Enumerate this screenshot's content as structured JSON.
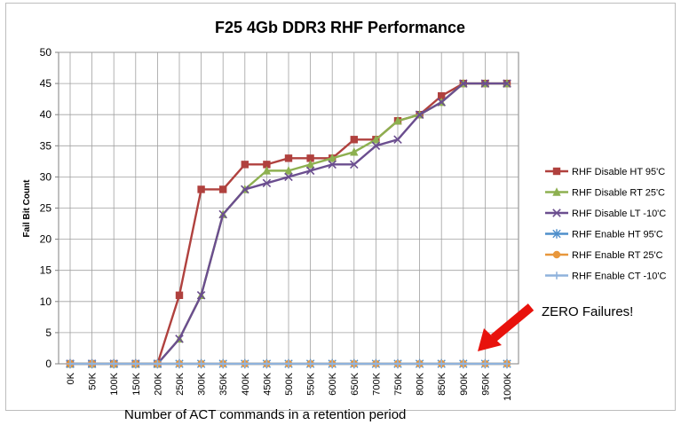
{
  "chart_data": {
    "type": "line",
    "title": "F25 4Gb DDR3 RHF Performance",
    "xlabel": "Number of ACT commands in a retention period",
    "ylabel": "Fail Bit Count",
    "ylim": [
      0,
      50
    ],
    "yticks": [
      0,
      5,
      10,
      15,
      20,
      25,
      30,
      35,
      40,
      45,
      50
    ],
    "grid": true,
    "legend_position": "right",
    "categories": [
      "0K",
      "50K",
      "100K",
      "150K",
      "200K",
      "250K",
      "300K",
      "350K",
      "400K",
      "450K",
      "500K",
      "550K",
      "600K",
      "650K",
      "700K",
      "750K",
      "800K",
      "850K",
      "900K",
      "950K",
      "1000K"
    ],
    "series": [
      {
        "name": "RHF Disable HT 95'C",
        "color": "#b0413e",
        "marker": "square",
        "values": [
          0,
          0,
          0,
          0,
          0,
          11,
          28,
          28,
          32,
          32,
          33,
          33,
          33,
          36,
          36,
          39,
          40,
          43,
          45,
          45,
          45
        ]
      },
      {
        "name": "RHF Disable RT 25'C",
        "color": "#8db050",
        "marker": "triangle",
        "values": [
          0,
          0,
          0,
          0,
          0,
          4,
          11,
          24,
          28,
          31,
          31,
          32,
          33,
          34,
          36,
          39,
          40,
          42,
          45,
          45,
          45
        ]
      },
      {
        "name": "RHF Disable LT -10'C",
        "color": "#6b4e8f",
        "marker": "x",
        "values": [
          0,
          0,
          0,
          0,
          0,
          4,
          11,
          24,
          28,
          29,
          30,
          31,
          32,
          32,
          35,
          36,
          40,
          42,
          45,
          45,
          45
        ]
      },
      {
        "name": "RHF Enable HT 95'C",
        "color": "#4f8fcb",
        "marker": "star",
        "values": [
          0,
          0,
          0,
          0,
          0,
          0,
          0,
          0,
          0,
          0,
          0,
          0,
          0,
          0,
          0,
          0,
          0,
          0,
          0,
          0,
          0
        ]
      },
      {
        "name": "RHF Enable RT 25'C",
        "color": "#e8973c",
        "marker": "circle",
        "values": [
          0,
          0,
          0,
          0,
          0,
          0,
          0,
          0,
          0,
          0,
          0,
          0,
          0,
          0,
          0,
          0,
          0,
          0,
          0,
          0,
          0
        ]
      },
      {
        "name": "RHF Enable CT -10'C",
        "color": "#8fb2dc",
        "marker": "plus",
        "values": [
          0,
          0,
          0,
          0,
          0,
          0,
          0,
          0,
          0,
          0,
          0,
          0,
          0,
          0,
          0,
          0,
          0,
          0,
          0,
          0,
          0
        ]
      }
    ],
    "annotation": {
      "text": "ZERO Failures!",
      "arrow_color": "#e8120c"
    }
  }
}
